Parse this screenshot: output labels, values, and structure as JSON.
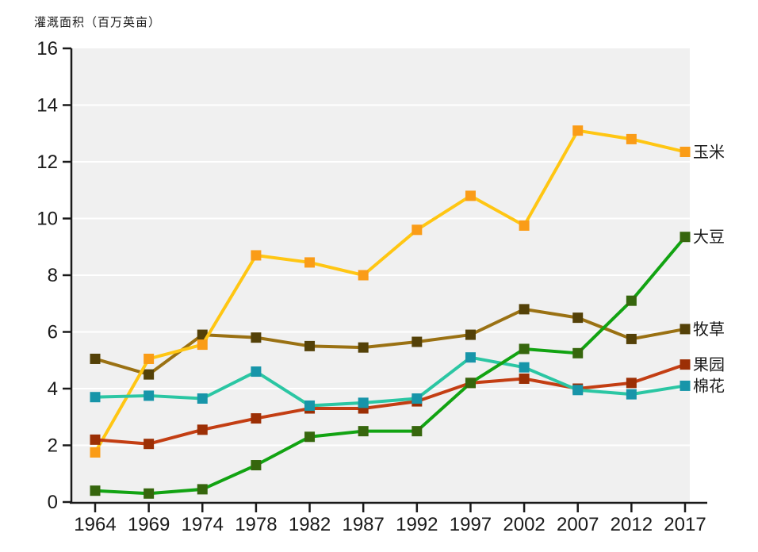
{
  "chart_data": {
    "type": "line",
    "title": "灌溉面积（百万英亩）",
    "categories": [
      "1964",
      "1969",
      "1974",
      "1978",
      "1982",
      "1987",
      "1992",
      "1997",
      "2002",
      "2007",
      "2012",
      "2017"
    ],
    "yticks": [
      0,
      2,
      4,
      6,
      8,
      10,
      12,
      14,
      16
    ],
    "ylim": [
      0,
      16
    ],
    "grid": "horizontal",
    "gridline_color": "#ffffff",
    "plot_background": "#f0f0f0",
    "axis_color": "#1a1a1a",
    "legend_position": "labels-at-line-ends",
    "series": [
      {
        "key": "corn",
        "label": "玉米",
        "line_color": "#ffc613",
        "marker_color": "#fa9c17",
        "values": [
          1.75,
          5.05,
          5.55,
          8.7,
          8.45,
          8.0,
          9.6,
          10.8,
          9.75,
          13.1,
          12.8,
          12.35
        ]
      },
      {
        "key": "soybean",
        "label": "大豆",
        "line_color": "#12a312",
        "marker_color": "#36660d",
        "values": [
          0.4,
          0.3,
          0.45,
          1.3,
          2.3,
          2.5,
          2.5,
          4.2,
          5.4,
          5.25,
          7.1,
          9.35
        ]
      },
      {
        "key": "hay",
        "label": "牧草",
        "line_color": "#9a7113",
        "marker_color": "#544108",
        "values": [
          5.05,
          4.5,
          5.9,
          5.8,
          5.5,
          5.45,
          5.65,
          5.9,
          6.8,
          6.5,
          5.75,
          6.1
        ]
      },
      {
        "key": "orchard",
        "label": "果园",
        "line_color": "#c33e13",
        "marker_color": "#9c2f05",
        "values": [
          2.2,
          2.05,
          2.55,
          2.95,
          3.3,
          3.3,
          3.55,
          4.2,
          4.35,
          4.0,
          4.2,
          4.85
        ]
      },
      {
        "key": "cotton",
        "label": "棉花",
        "line_color": "#2bc6a3",
        "marker_color": "#1795a9",
        "values": [
          3.7,
          3.75,
          3.65,
          4.6,
          3.4,
          3.5,
          3.65,
          5.1,
          4.75,
          3.95,
          3.8,
          4.1
        ]
      }
    ]
  }
}
